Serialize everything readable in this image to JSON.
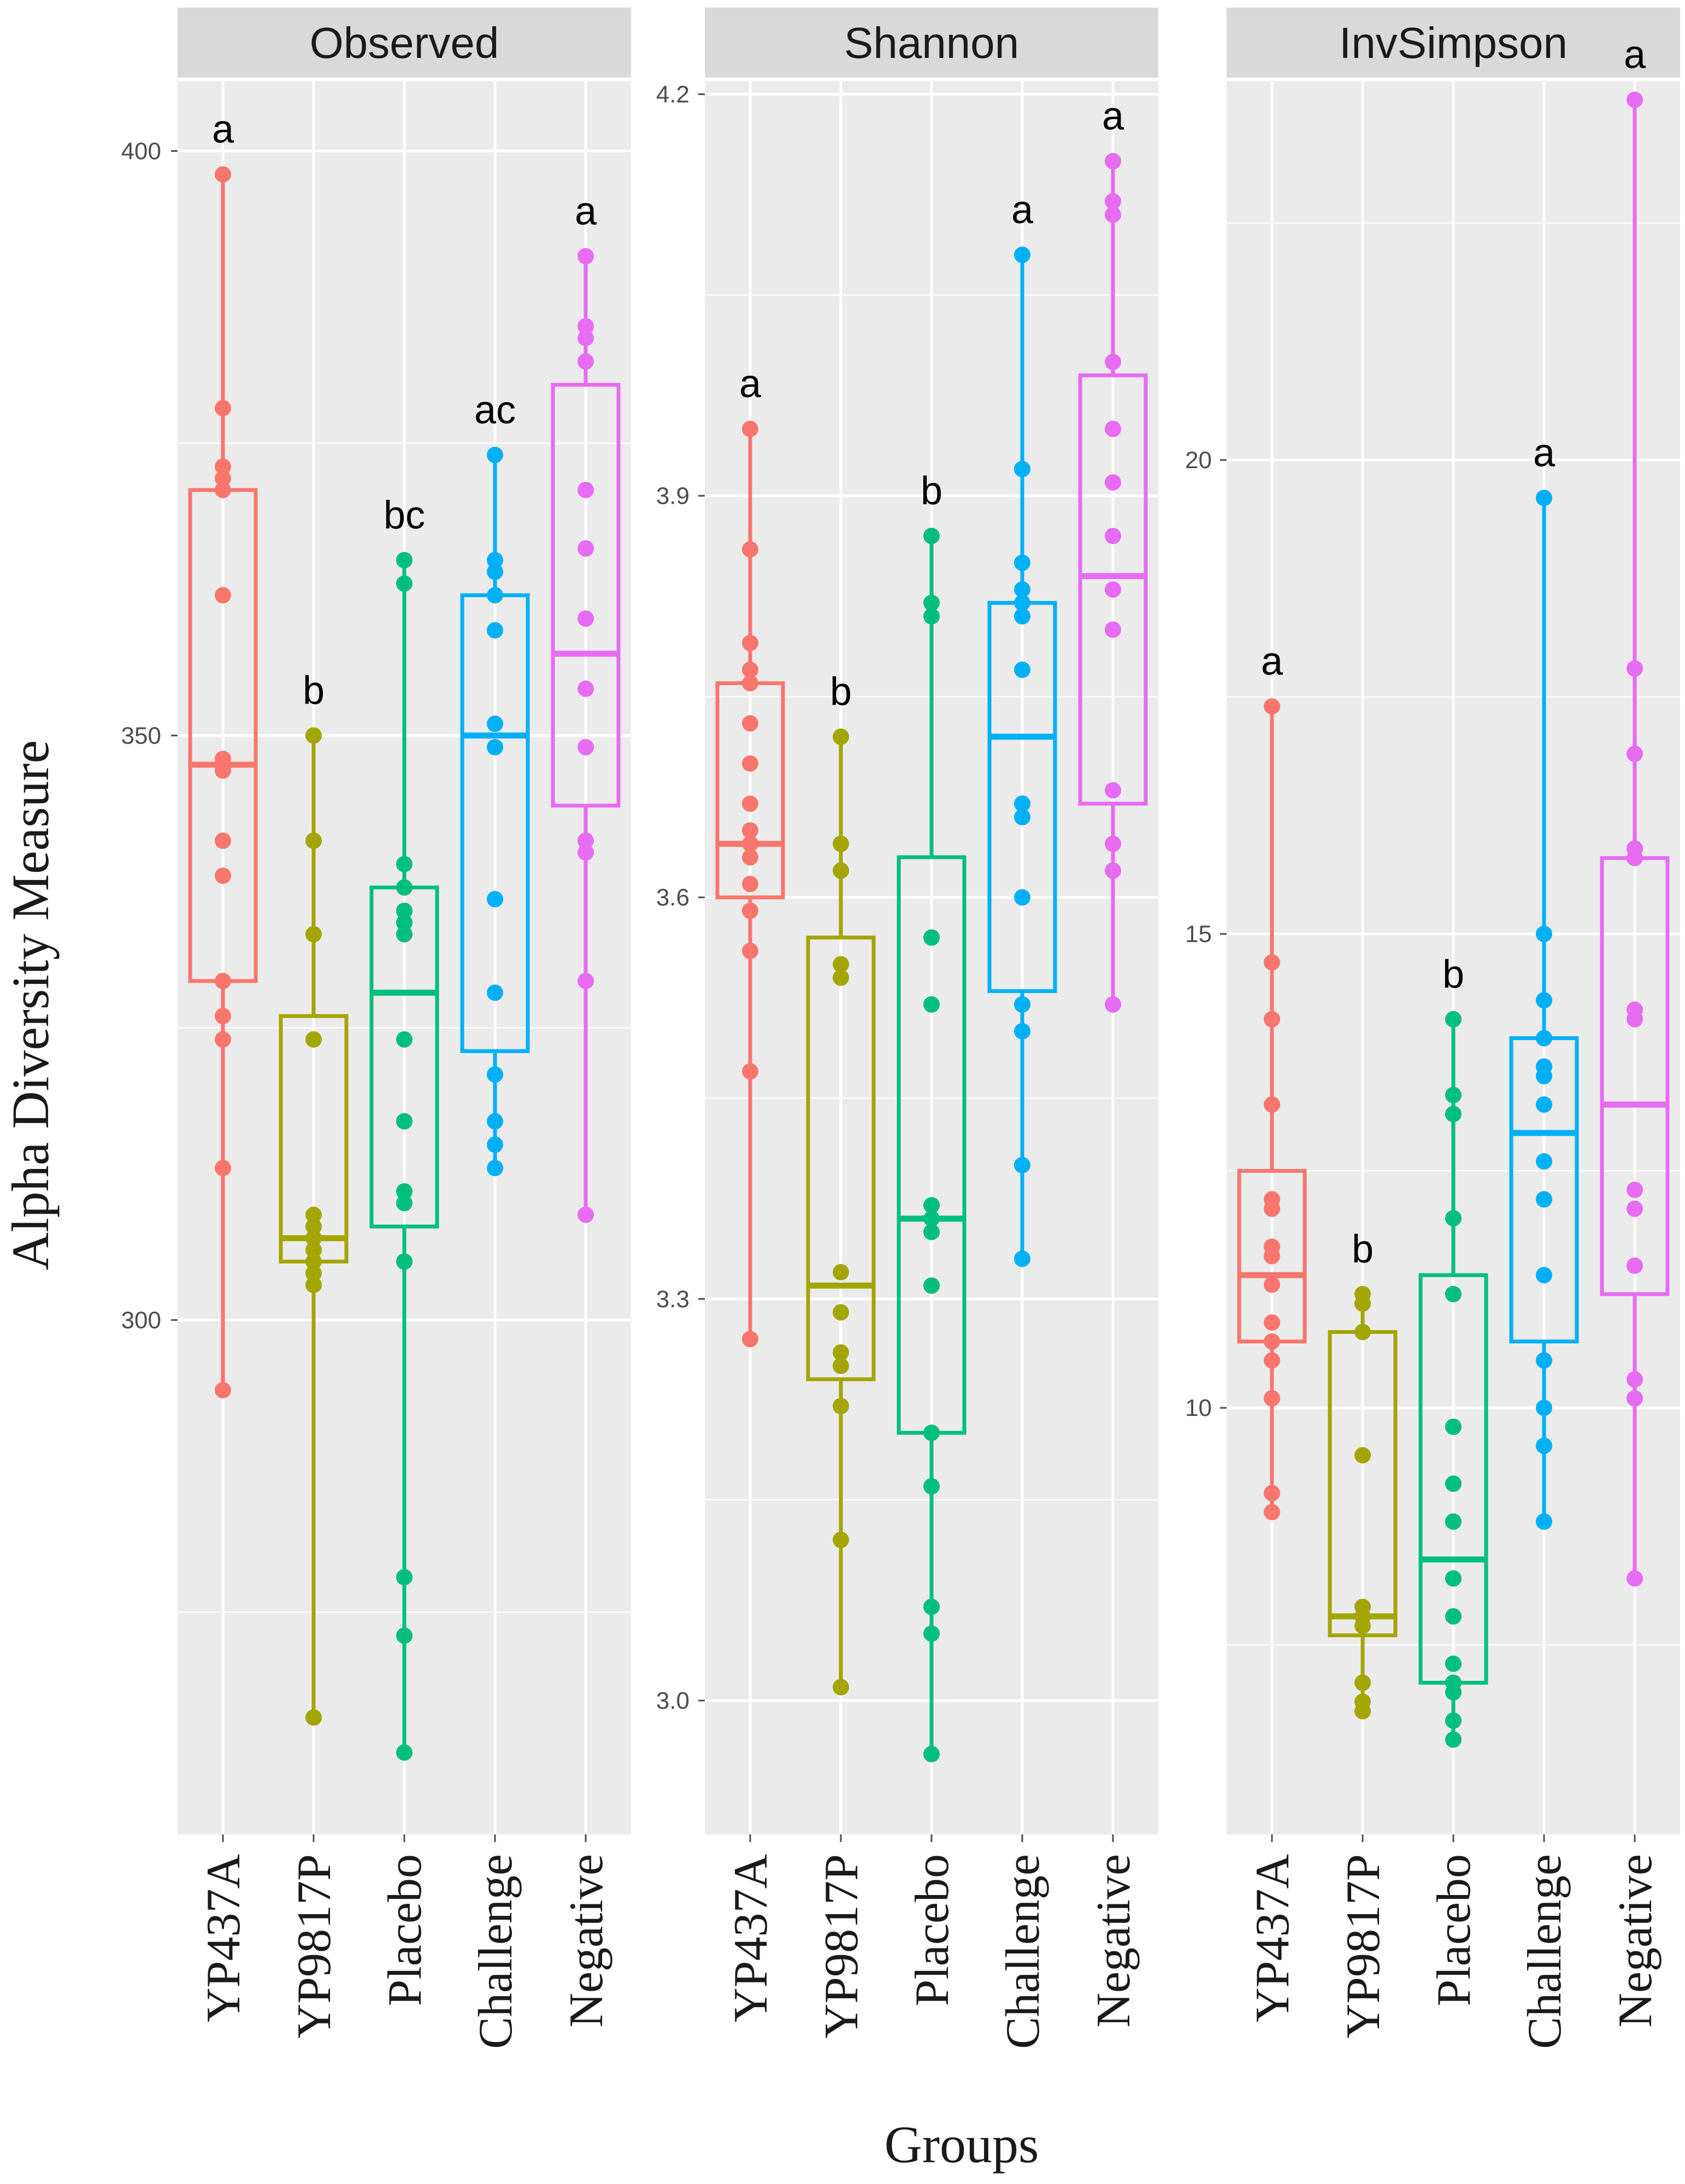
{
  "chart_data": {
    "type": "box",
    "ylabel": "Alpha Diversity Measure",
    "xlabel": "Groups",
    "categories": [
      "YP437A",
      "YP9817P",
      "Placebo",
      "Challenge",
      "Negative"
    ],
    "colors": {
      "YP437A": "#F8766D",
      "YP9817P": "#A3A500",
      "Placebo": "#00BF7D",
      "Challenge": "#00B0F6",
      "Negative": "#E76BF3"
    },
    "grid": true,
    "panels": [
      {
        "title": "Observed",
        "ylim": [
          256,
          406
        ],
        "yticks": [
          300,
          350,
          400
        ],
        "boxes": [
          {
            "group": "YP437A",
            "min": 294,
            "q1": 329,
            "median": 347.5,
            "q3": 371,
            "max": 398,
            "points": [
              398,
              378,
              373,
              372,
              371,
              362,
              348,
              347.5,
              347,
              341,
              338,
              329,
              326,
              324,
              313,
              294
            ],
            "letters": "a"
          },
          {
            "group": "YP9817P",
            "min": 266,
            "q1": 305,
            "median": 307,
            "q3": 326,
            "max": 350,
            "points": [
              350,
              341,
              333,
              324,
              309,
              308,
              307,
              306,
              305,
              304,
              303,
              266
            ],
            "letters": "b"
          },
          {
            "group": "Placebo",
            "min": 263,
            "q1": 308,
            "median": 328,
            "q3": 337,
            "max": 365,
            "points": [
              365,
              363,
              339,
              337,
              335,
              334,
              333,
              324,
              317,
              311,
              310,
              305,
              278,
              273,
              263
            ],
            "letters": "bc"
          },
          {
            "group": "Challenge",
            "min": 313,
            "q1": 323,
            "median": 350,
            "q3": 362,
            "max": 374,
            "points": [
              374,
              365,
              364,
              362,
              359,
              351,
              349,
              336,
              328,
              321,
              317,
              315,
              313
            ],
            "letters": "ac"
          },
          {
            "group": "Negative",
            "min": 309,
            "q1": 344,
            "median": 357,
            "q3": 380,
            "max": 391,
            "points": [
              391,
              385,
              384,
              382,
              371,
              366,
              360,
              354,
              349,
              341,
              340,
              329,
              309
            ],
            "letters": "a"
          }
        ]
      },
      {
        "title": "Shannon",
        "ylim": [
          2.9,
          4.21
        ],
        "yticks": [
          3.0,
          3.3,
          3.6,
          3.9,
          4.2
        ],
        "boxes": [
          {
            "group": "YP437A",
            "min": 3.27,
            "q1": 3.6,
            "median": 3.64,
            "q3": 3.76,
            "max": 3.95,
            "points": [
              3.95,
              3.86,
              3.79,
              3.77,
              3.76,
              3.73,
              3.7,
              3.67,
              3.65,
              3.64,
              3.63,
              3.61,
              3.59,
              3.56,
              3.47,
              3.27
            ],
            "letters": "a"
          },
          {
            "group": "YP9817P",
            "min": 3.01,
            "q1": 3.24,
            "median": 3.31,
            "q3": 3.57,
            "max": 3.72,
            "points": [
              3.72,
              3.64,
              3.62,
              3.55,
              3.54,
              3.32,
              3.29,
              3.26,
              3.25,
              3.22,
              3.12,
              3.01
            ],
            "letters": "b"
          },
          {
            "group": "Placebo",
            "min": 2.96,
            "q1": 3.2,
            "median": 3.36,
            "q3": 3.63,
            "max": 3.87,
            "points": [
              3.87,
              3.82,
              3.81,
              3.57,
              3.52,
              3.37,
              3.36,
              3.35,
              3.31,
              3.2,
              3.16,
              3.07,
              3.05,
              2.96
            ],
            "letters": "b"
          },
          {
            "group": "Challenge",
            "min": 3.33,
            "q1": 3.53,
            "median": 3.72,
            "q3": 3.82,
            "max": 4.08,
            "points": [
              4.08,
              3.92,
              3.85,
              3.83,
              3.82,
              3.81,
              3.77,
              3.67,
              3.66,
              3.6,
              3.52,
              3.5,
              3.4,
              3.33
            ],
            "letters": "a"
          },
          {
            "group": "Negative",
            "min": 3.52,
            "q1": 3.67,
            "median": 3.84,
            "q3": 3.99,
            "max": 4.15,
            "points": [
              4.15,
              4.12,
              4.11,
              4.0,
              3.95,
              3.91,
              3.87,
              3.83,
              3.8,
              3.68,
              3.64,
              3.62,
              3.52
            ],
            "letters": "a"
          }
        ]
      },
      {
        "title": "InvSimpson",
        "ylim": [
          5.5,
          24.0
        ],
        "yticks": [
          10,
          15,
          20
        ],
        "boxes": [
          {
            "group": "YP437A",
            "min": 8.9,
            "q1": 10.7,
            "median": 11.4,
            "q3": 12.5,
            "max": 17.4,
            "points": [
              17.4,
              14.7,
              14.1,
              13.2,
              12.2,
              12.1,
              11.7,
              11.6,
              11.3,
              10.9,
              10.7,
              10.5,
              10.1,
              9.1,
              8.9
            ],
            "letters": "a"
          },
          {
            "group": "YP9817P",
            "min": 6.8,
            "q1": 7.6,
            "median": 7.8,
            "q3": 10.8,
            "max": 11.2,
            "points": [
              11.2,
              11.1,
              10.8,
              9.5,
              7.9,
              7.8,
              7.7,
              7.1,
              6.9,
              6.8
            ],
            "letters": "b"
          },
          {
            "group": "Placebo",
            "min": 6.5,
            "q1": 7.1,
            "median": 8.4,
            "q3": 11.4,
            "max": 14.1,
            "points": [
              14.1,
              13.3,
              13.1,
              12.0,
              11.2,
              9.8,
              9.2,
              8.8,
              8.2,
              7.8,
              7.3,
              7.1,
              7.0,
              6.7,
              6.5
            ],
            "letters": "b"
          },
          {
            "group": "Challenge",
            "min": 8.8,
            "q1": 10.7,
            "median": 12.9,
            "q3": 13.9,
            "max": 19.6,
            "points": [
              19.6,
              15.0,
              14.3,
              13.9,
              13.6,
              13.5,
              13.2,
              12.6,
              12.2,
              11.4,
              10.5,
              10.0,
              9.6,
              8.8
            ],
            "letters": "a"
          },
          {
            "group": "Negative",
            "min": 8.2,
            "q1": 11.2,
            "median": 13.2,
            "q3": 15.8,
            "max": 23.8,
            "points": [
              23.8,
              17.8,
              16.9,
              15.9,
              15.8,
              14.2,
              14.1,
              12.3,
              12.1,
              11.5,
              10.3,
              10.1,
              8.2
            ],
            "letters": "a"
          }
        ]
      }
    ]
  }
}
